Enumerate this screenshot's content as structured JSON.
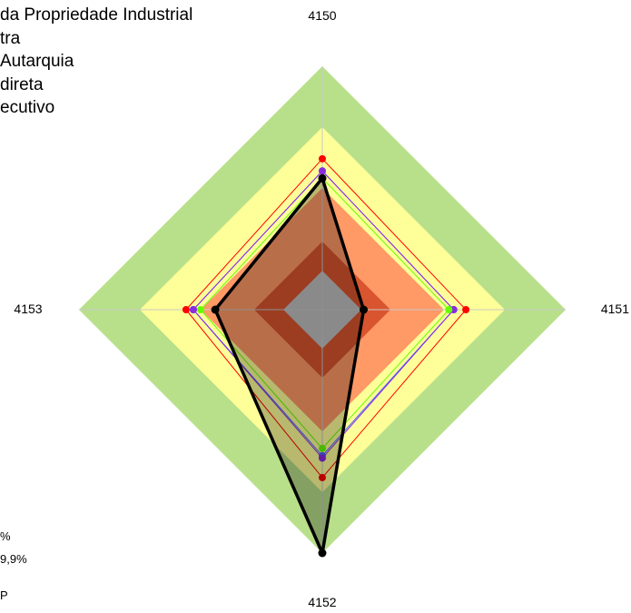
{
  "legend_lines": [
    "da Propriedade Industrial",
    "tra",
    " Autarquia",
    "direta",
    "ecutivo"
  ],
  "fragments": [
    "%",
    "9,9%",
    "P"
  ],
  "colors": {
    "band_green": "#b8e08a",
    "band_yellow": "#ffff99",
    "band_orange": "#ff9966",
    "band_red": "#d9552f",
    "band_gray": "#c0c0c0",
    "series_red": "#ff0000",
    "series_blue": "#4a66ff",
    "series_purple": "#8a2be2",
    "series_green": "#66ff00",
    "series_black": "#000000"
  },
  "chart_data": {
    "type": "radar",
    "axes": [
      "4150",
      "4151",
      "4152",
      "4153"
    ],
    "range": [
      0,
      1
    ],
    "bands": [
      1.0,
      0.75,
      0.5,
      0.28,
      0.16
    ],
    "series": [
      {
        "color": "#ff0000",
        "values": [
          0.62,
          0.59,
          0.69,
          0.56
        ]
      },
      {
        "color": "#4a66ff",
        "values": [
          0.57,
          0.54,
          0.6,
          0.53
        ]
      },
      {
        "color": "#8a2be2",
        "values": [
          0.57,
          0.54,
          0.61,
          0.53
        ]
      },
      {
        "color": "#66ff00",
        "values": [
          0.54,
          0.52,
          0.57,
          0.5
        ]
      },
      {
        "color": "#000000",
        "values": [
          0.54,
          0.17,
          1.0,
          0.44
        ]
      }
    ]
  }
}
